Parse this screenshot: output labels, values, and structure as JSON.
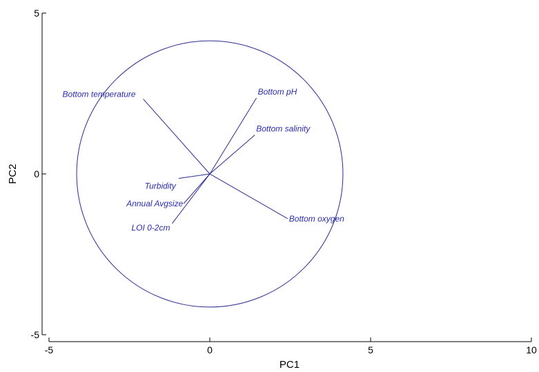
{
  "chart_data": {
    "type": "scatter",
    "subtype": "pca-biplot-vectors",
    "xlabel": "PC1",
    "ylabel": "PC2",
    "xlim": [
      -5,
      10
    ],
    "ylim": [
      -5,
      5
    ],
    "x_ticks": [
      -5,
      0,
      5,
      10
    ],
    "y_ticks": [
      -5,
      0,
      5
    ],
    "grid": false,
    "circle_radius": 4.14,
    "colors": {
      "vector": "#2b2b8f",
      "label": "#2b2bb0",
      "axis": "#000000"
    },
    "vectors": [
      {
        "name": "Bottom temperature",
        "x": -2.07,
        "y": 2.33
      },
      {
        "name": "Bottom pH",
        "x": 1.45,
        "y": 2.36
      },
      {
        "name": "Bottom salinity",
        "x": 1.4,
        "y": 1.21
      },
      {
        "name": "Turbidity",
        "x": -0.97,
        "y": -0.14
      },
      {
        "name": "Annual Avgsize",
        "x": -0.81,
        "y": -0.92
      },
      {
        "name": "LOI 0-2cm",
        "x": -1.17,
        "y": -1.54
      },
      {
        "name": "Bottom oxygen",
        "x": 2.42,
        "y": -1.39
      }
    ]
  }
}
